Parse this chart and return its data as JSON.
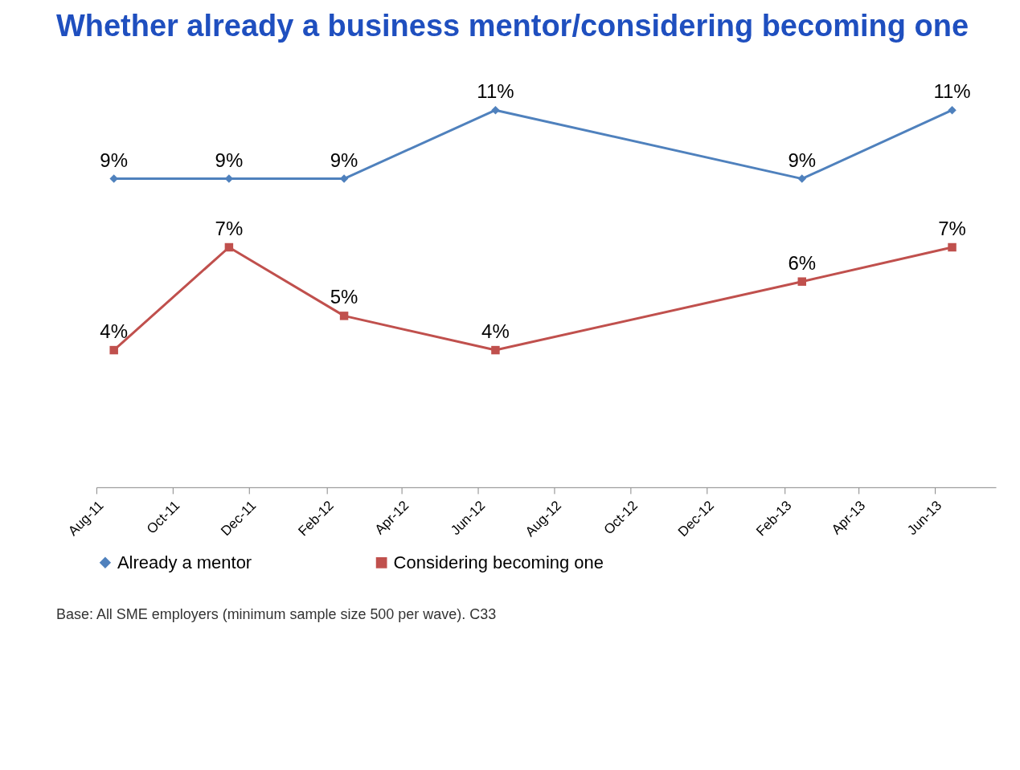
{
  "chart_data": {
    "type": "line",
    "title": "Whether already a business mentor/considering becoming one",
    "x": [
      "2011-08-15",
      "2011-11-15",
      "2012-02-15",
      "2012-06-15",
      "2013-02-15",
      "2013-06-15"
    ],
    "xlim": [
      "2011-08-01",
      "2013-07-20"
    ],
    "xticks": [
      {
        "value": "2011-08-01",
        "label": "Aug-11"
      },
      {
        "value": "2011-10-01",
        "label": "Oct-11"
      },
      {
        "value": "2011-12-01",
        "label": "Dec-11"
      },
      {
        "value": "2012-02-01",
        "label": "Feb-12"
      },
      {
        "value": "2012-04-01",
        "label": "Apr-12"
      },
      {
        "value": "2012-06-01",
        "label": "Jun-12"
      },
      {
        "value": "2012-08-01",
        "label": "Aug-12"
      },
      {
        "value": "2012-10-01",
        "label": "Oct-12"
      },
      {
        "value": "2012-12-01",
        "label": "Dec-12"
      },
      {
        "value": "2013-02-01",
        "label": "Feb-13"
      },
      {
        "value": "2013-04-01",
        "label": "Apr-13"
      },
      {
        "value": "2013-06-01",
        "label": "Jun-13"
      }
    ],
    "series": [
      {
        "name": "Already a mentor",
        "color": "#4f81bd",
        "marker": "diamond",
        "values": [
          9,
          9,
          9,
          11,
          9,
          11
        ],
        "value_labels": [
          "9%",
          "9%",
          "9%",
          "11%",
          "9%",
          "11%"
        ]
      },
      {
        "name": "Considering becoming one",
        "color": "#c0504d",
        "marker": "square",
        "values": [
          4,
          7,
          5,
          4,
          6,
          7
        ],
        "value_labels": [
          "4%",
          "7%",
          "5%",
          "4%",
          "6%",
          "7%"
        ]
      }
    ],
    "tick_labels": "x",
    "grid": false,
    "legend": "bottom",
    "line_style": "solid",
    "annotations": [
      "Base: All SME employers (minimum sample size 500 per wave). C33"
    ]
  }
}
